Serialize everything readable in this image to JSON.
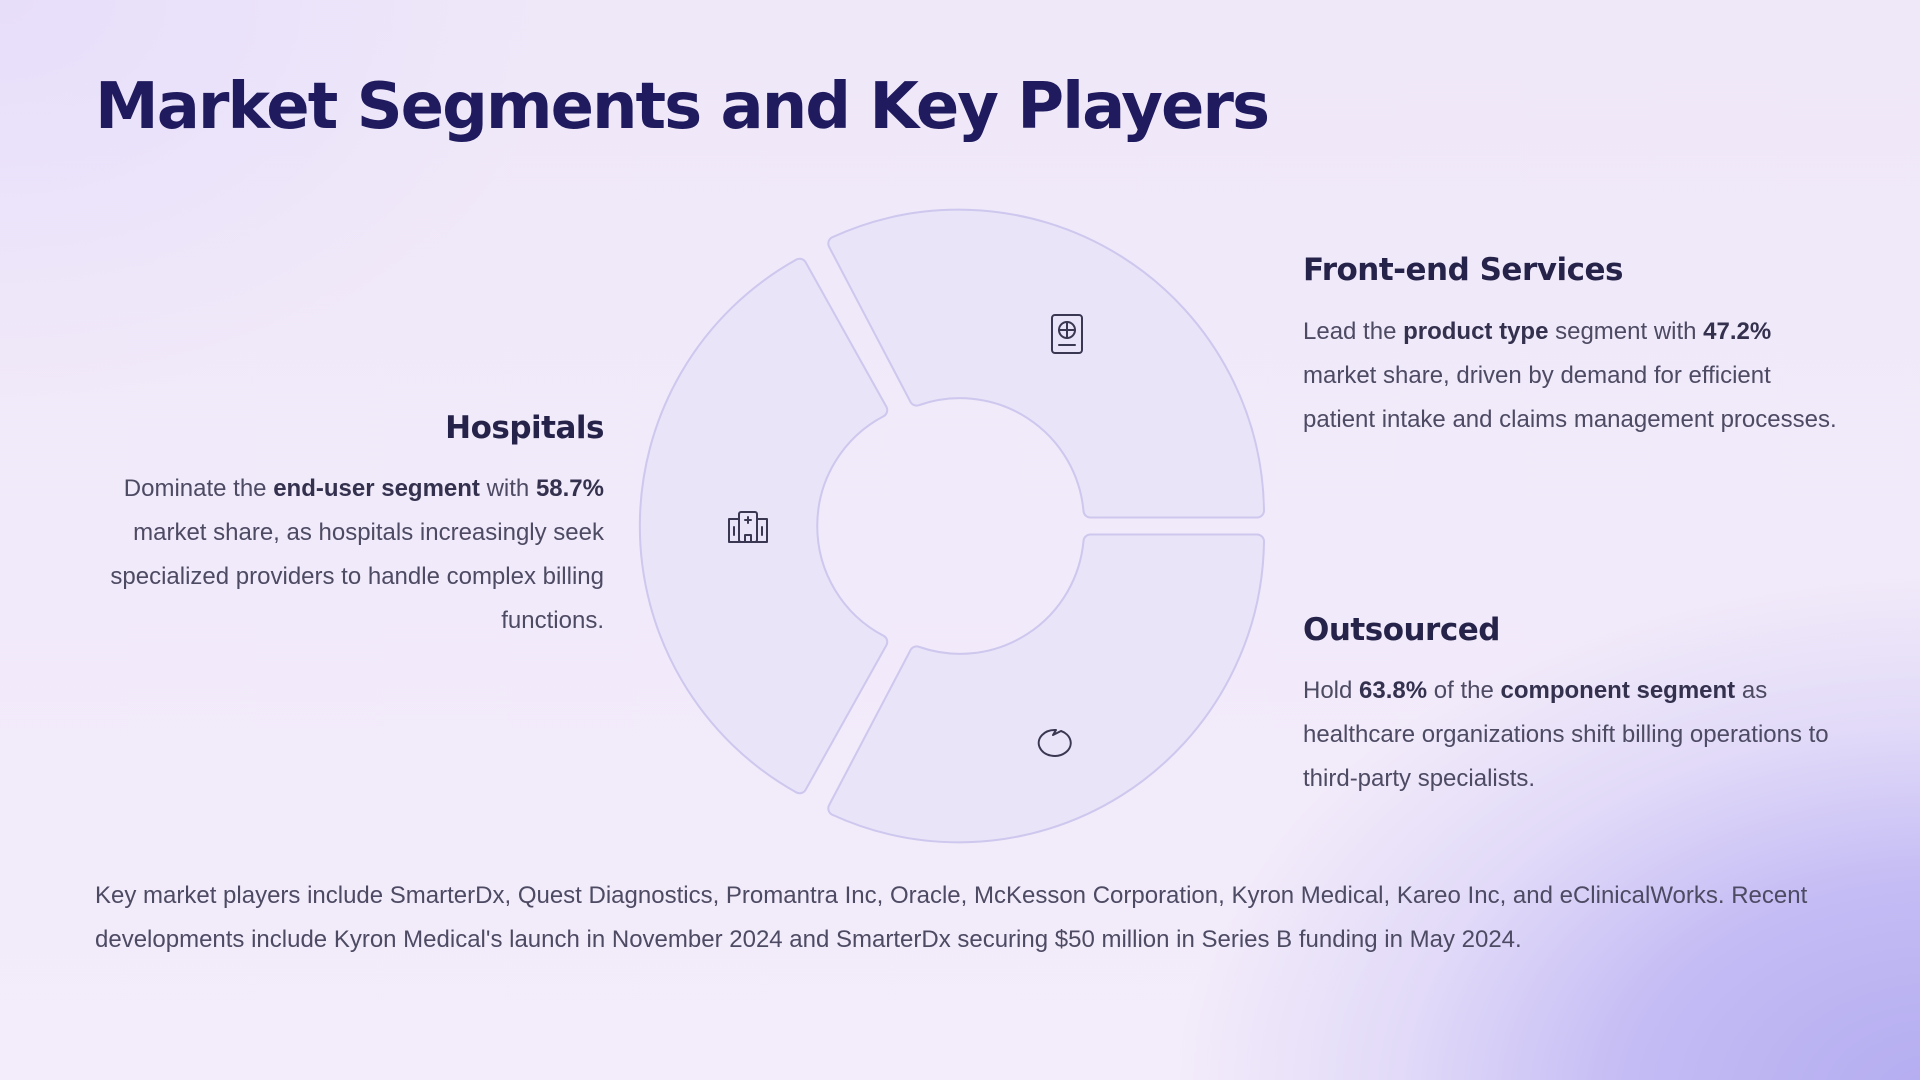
{
  "title": "Market Segments and Key Players",
  "segments": {
    "hospitals": {
      "heading": "Hospitals",
      "icon": "hospital-icon",
      "text": [
        {
          "t": "Dominate the "
        },
        {
          "t": "end-user segment",
          "b": true
        },
        {
          "t": " with "
        },
        {
          "t": "58.7%",
          "b": true
        },
        {
          "t": " market share, as hospitals increasingly seek specialized providers to handle complex billing functions."
        }
      ]
    },
    "front_end": {
      "heading": "Front-end Services",
      "icon": "passport-icon",
      "text": [
        {
          "t": "Lead the "
        },
        {
          "t": "product type",
          "b": true
        },
        {
          "t": " segment with "
        },
        {
          "t": "47.2%",
          "b": true
        },
        {
          "t": " market share, driven by demand for efficient patient intake and claims management processes."
        }
      ]
    },
    "outsourced": {
      "heading": "Outsourced",
      "icon": "speech-bubble-icon",
      "text": [
        {
          "t": "Hold "
        },
        {
          "t": "63.8%",
          "b": true
        },
        {
          "t": " of the "
        },
        {
          "t": "component segment",
          "b": true
        },
        {
          "t": " as healthcare organizations shift billing operations to third-party specialists."
        }
      ]
    }
  },
  "footer": "Key market players include SmarterDx, Quest Diagnostics, Promantra Inc, Oracle, McKesson Corporation, Kyron Medical, Kareo Inc, and eClinicalWorks. Recent developments include Kyron Medical's launch in November 2024 and SmarterDx securing $50 million in Series B funding in May 2024.",
  "colors": {
    "title": "#1f1b5e",
    "segment_fill": "#e9e4f8",
    "segment_stroke": "#cec7ee",
    "accent_gradient": "#b3acf0"
  }
}
